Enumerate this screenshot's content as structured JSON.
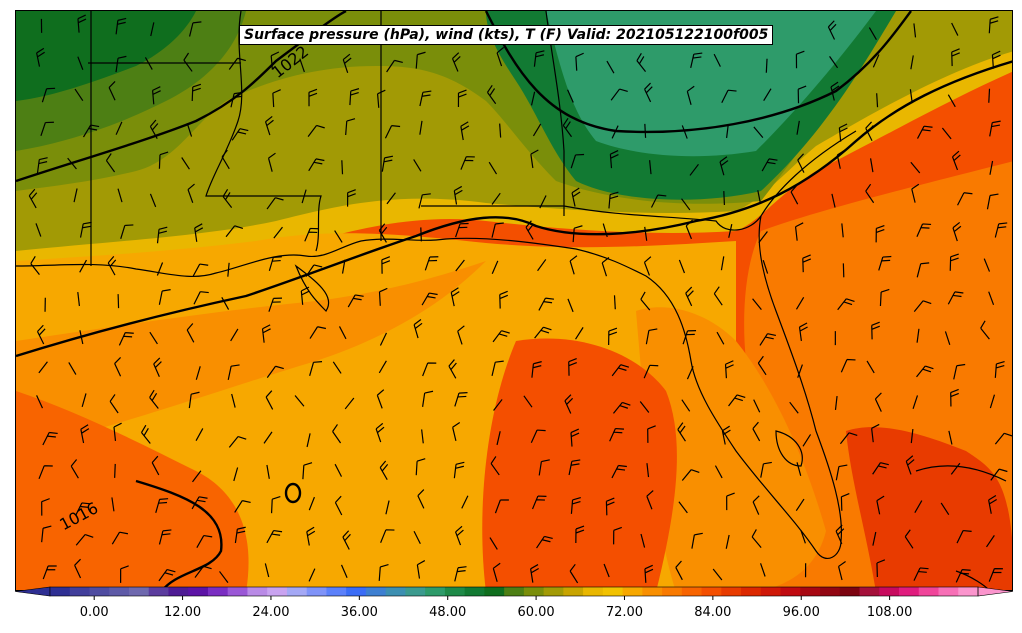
{
  "title": "Surface pressure (hPa), wind (kts), T (F) Valid: 202105122100f005",
  "isobar_labels": [
    {
      "text": "1022"
    },
    {
      "text": "1016"
    }
  ],
  "colorbar": {
    "min": -6,
    "max": 120,
    "tick_values": [
      0,
      12,
      24,
      36,
      48,
      60,
      72,
      84,
      96,
      108
    ],
    "tick_labels": [
      "0.00",
      "12.00",
      "24.00",
      "36.00",
      "48.00",
      "60.00",
      "72.00",
      "84.00",
      "96.00",
      "108.00"
    ],
    "colors": [
      "#2e2f93",
      "#413e9b",
      "#4f4ca1",
      "#5e5aa7",
      "#6e68ae",
      "#5b3c9e",
      "#4e1b94",
      "#5c13a6",
      "#7a2ec2",
      "#9a57d6",
      "#b98ae6",
      "#c9a3f0",
      "#a4a8f5",
      "#7f93f8",
      "#5b80fa",
      "#3a6cf6",
      "#3d7fd1",
      "#3c8fb1",
      "#3b9a8e",
      "#2e9b6a",
      "#1e8a48",
      "#127a33",
      "#0f6e1e",
      "#4d7f14",
      "#7a8e0a",
      "#a29a05",
      "#c8a400",
      "#e9b700",
      "#f2c200",
      "#f7a800",
      "#f98f00",
      "#f97a00",
      "#f86400",
      "#f44f00",
      "#e83b00",
      "#dc2800",
      "#cf1808",
      "#c00a10",
      "#a80812",
      "#920612",
      "#7c0410",
      "#a4103a",
      "#c70a5e",
      "#e01c7e",
      "#f0459a",
      "#f76fb6",
      "#fb95cd"
    ]
  },
  "chart_data": {
    "type": "heatmap",
    "title": "Surface pressure (hPa), wind (kts), T (F) Valid: 202105122100f005",
    "variable": "T (F)",
    "legend_range": [
      -6,
      120
    ],
    "contours": {
      "variable": "Surface pressure (hPa)",
      "labels_shown": [
        1022,
        1016
      ]
    },
    "vectors": {
      "variable": "wind (kts)",
      "style": "barbs"
    }
  }
}
